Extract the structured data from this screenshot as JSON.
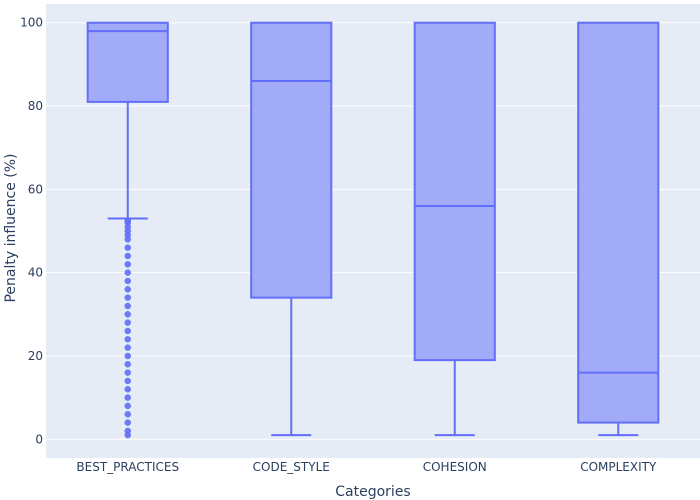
{
  "chart_data": {
    "type": "box",
    "title": "",
    "xlabel": "Categories",
    "ylabel": "Penalty influence (%)",
    "ylim": [
      -4.5,
      104.5
    ],
    "yticks": [
      0,
      20,
      40,
      60,
      80,
      100
    ],
    "grid": true,
    "legend": "none",
    "colors": {
      "plot_bg": "#e5ecf6",
      "grid": "#ffffff",
      "box_fill": "#a2abf8",
      "box_line": "#636efa",
      "text": "#2a3f5f"
    },
    "categories": [
      "BEST_PRACTICES",
      "CODE_STYLE",
      "COHESION",
      "COMPLEXITY"
    ],
    "boxes": [
      {
        "category": "BEST_PRACTICES",
        "lowerfence": 53,
        "q1": 81,
        "median": 98,
        "q3": 100,
        "upperfence": 100,
        "outliers": [
          52.5,
          52,
          51,
          50,
          49,
          48,
          46,
          44,
          42,
          40,
          38,
          36,
          34,
          32,
          30,
          28,
          26,
          24,
          22,
          20,
          18,
          16,
          14,
          12,
          10,
          8,
          6,
          4,
          2,
          1
        ]
      },
      {
        "category": "CODE_STYLE",
        "lowerfence": 1,
        "q1": 34,
        "median": 86,
        "q3": 100,
        "upperfence": 100,
        "outliers": []
      },
      {
        "category": "COHESION",
        "lowerfence": 1,
        "q1": 19,
        "median": 56,
        "q3": 100,
        "upperfence": 100,
        "outliers": []
      },
      {
        "category": "COMPLEXITY",
        "lowerfence": 1,
        "q1": 4,
        "median": 16,
        "q3": 100,
        "upperfence": 100,
        "outliers": []
      }
    ]
  }
}
